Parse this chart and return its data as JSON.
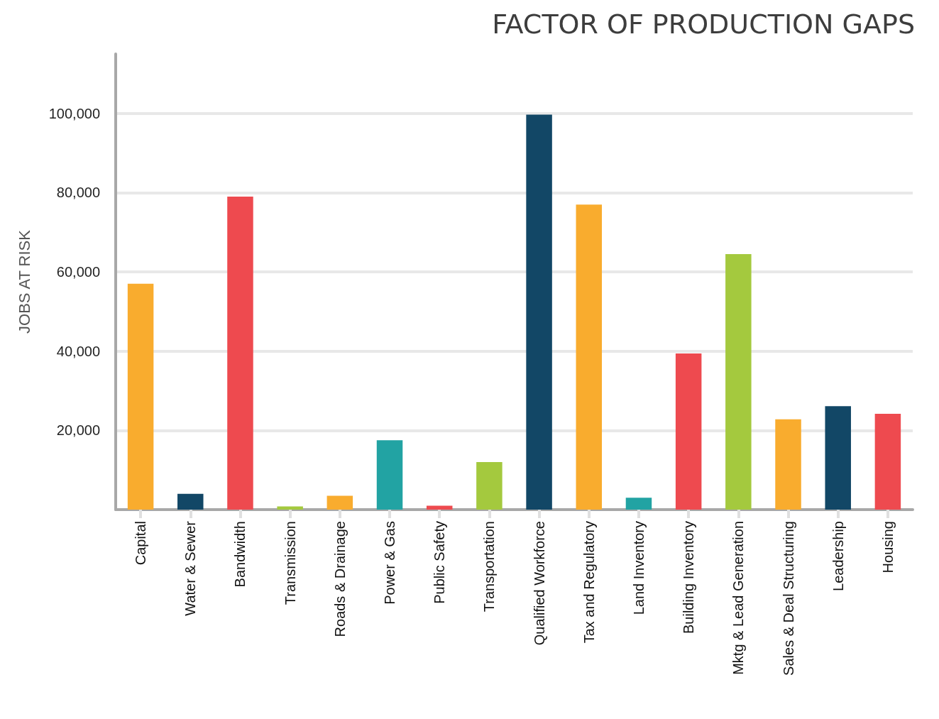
{
  "chart_data": {
    "type": "bar",
    "title": "FACTOR OF PRODUCTION GAPS",
    "ylabel": "JOBS AT RISK",
    "categories": [
      "Capital",
      "Water & Sewer",
      "Bandwidth",
      "Transmission",
      "Roads & Drainage",
      "Power & Gas",
      "Public Safety",
      "Transportation",
      "Qualified Workforce",
      "Tax and Regulatory",
      "Land Inventory",
      "Building Inventory",
      "Mktg & Lead Generation",
      "Sales & Deal Structuring",
      "Leadership",
      "Housing"
    ],
    "values": [
      57000,
      4000,
      79000,
      800,
      3500,
      17500,
      1000,
      12000,
      99700,
      77000,
      3000,
      39400,
      64500,
      22800,
      26100,
      24200
    ],
    "colors": [
      "#f9ac2e",
      "#124766",
      "#ee4a4f",
      "#a4c93e",
      "#f9ac2e",
      "#22a3a3",
      "#ee4a4f",
      "#a4c93e",
      "#124766",
      "#f9ac2e",
      "#22a3a3",
      "#ee4a4f",
      "#a4c93e",
      "#f9ac2e",
      "#124766",
      "#ee4a4f"
    ],
    "ylim": [
      0,
      115000
    ],
    "yticks": [
      {
        "value": 0,
        "label": null
      },
      {
        "value": 20000,
        "label": "20,000"
      },
      {
        "value": 40000,
        "label": "40,000"
      },
      {
        "value": 60000,
        "label": "60,000"
      },
      {
        "value": 80000,
        "label": "80,000"
      },
      {
        "value": 100000,
        "label": "100,000"
      }
    ],
    "grid": "y"
  }
}
